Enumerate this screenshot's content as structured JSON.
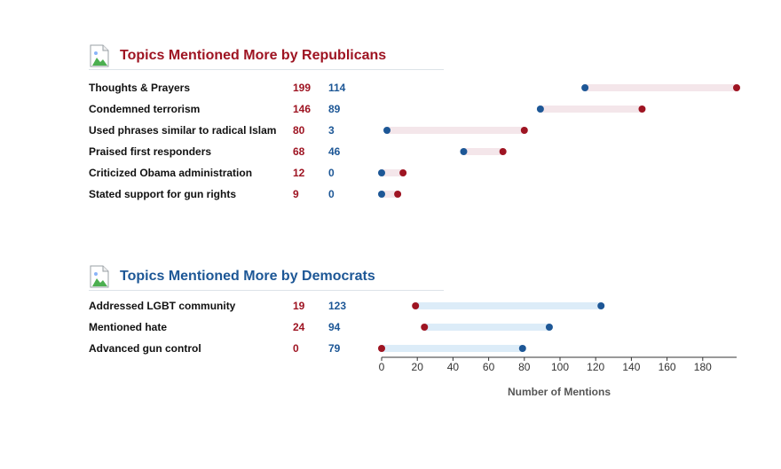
{
  "sections": [
    {
      "title": "Topics Mentioned More by Republicans",
      "party_color": "rep"
    },
    {
      "title": "Topics Mentioned More by Democrats",
      "party_color": "dem"
    }
  ],
  "colors": {
    "republican": "#9e1422",
    "democrat": "#1d5796",
    "rep_bar": "#f4e6ea",
    "dem_bar": "#dcecf8"
  },
  "chart_data": {
    "type": "dumbbell",
    "xlabel": "Number of Mentions",
    "xlim": [
      0,
      198
    ],
    "xticks": [
      0,
      20,
      40,
      60,
      80,
      100,
      120,
      140,
      160,
      180
    ],
    "groups": [
      {
        "title": "Topics Mentioned More by Republicans",
        "rows": [
          {
            "label": "Thoughts & Prayers",
            "republican": 199,
            "democrat": 114
          },
          {
            "label": "Condemned terrorism",
            "republican": 146,
            "democrat": 89
          },
          {
            "label": "Used phrases similar to radical Islam",
            "republican": 80,
            "democrat": 3
          },
          {
            "label": "Praised first responders",
            "republican": 68,
            "democrat": 46
          },
          {
            "label": "Criticized Obama administration",
            "republican": 12,
            "democrat": 0
          },
          {
            "label": "Stated support for gun rights",
            "republican": 9,
            "democrat": 0
          }
        ]
      },
      {
        "title": "Topics Mentioned More by Democrats",
        "rows": [
          {
            "label": "Addressed LGBT community",
            "republican": 19,
            "democrat": 123
          },
          {
            "label": "Mentioned hate",
            "republican": 24,
            "democrat": 94
          },
          {
            "label": "Advanced gun control",
            "republican": 0,
            "democrat": 79
          }
        ]
      }
    ]
  }
}
